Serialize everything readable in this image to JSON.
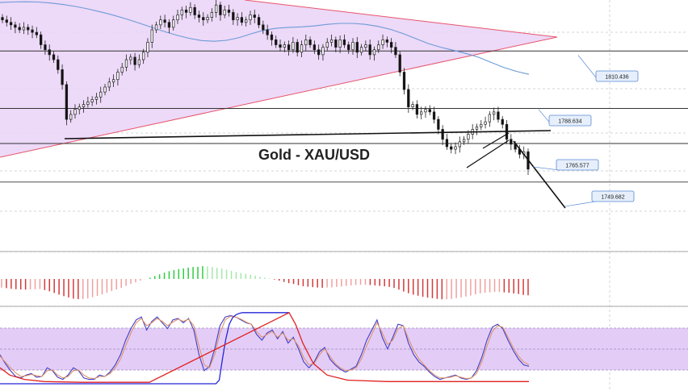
{
  "chart_data": [
    {
      "type": "candlestick",
      "title": "Gold - XAU/USD",
      "ylim": [
        1738,
        1832
      ],
      "levels": [
        {
          "label": "1810.436",
          "value": 1810.436
        },
        {
          "label": "1788.634",
          "value": 1788.634
        },
        {
          "label": "1765.577",
          "value": 1765.577
        },
        {
          "label": "1749.682",
          "value": 1749.682
        }
      ],
      "horizontal_lines": [
        1811.5,
        1788.4,
        1774.3,
        1758.8
      ],
      "close": [
        1824,
        1823,
        1822,
        1821,
        1820,
        1821,
        1820,
        1819,
        1818,
        1814,
        1812,
        1810,
        1808,
        1804,
        1798,
        1784,
        1786,
        1788,
        1789,
        1790,
        1791,
        1792,
        1793,
        1795,
        1797,
        1799,
        1800,
        1803,
        1805,
        1808,
        1809,
        1806,
        1808,
        1811,
        1815,
        1820,
        1822,
        1824,
        1823,
        1821,
        1824,
        1826,
        1828,
        1827,
        1829,
        1826,
        1825,
        1824,
        1825,
        1827,
        1830,
        1826,
        1828,
        1827,
        1824,
        1825,
        1823,
        1824,
        1826,
        1825,
        1822,
        1820,
        1818,
        1816,
        1814,
        1813,
        1814,
        1812,
        1815,
        1811,
        1814,
        1816,
        1814,
        1812,
        1810,
        1813,
        1815,
        1816,
        1813,
        1816,
        1814,
        1812,
        1815,
        1811,
        1813,
        1814,
        1810,
        1812,
        1814,
        1816,
        1815,
        1813,
        1810,
        1803,
        1796,
        1789,
        1790,
        1786,
        1787,
        1788,
        1787,
        1784,
        1780,
        1776,
        1773,
        1772,
        1773,
        1775,
        1776,
        1778,
        1780,
        1781,
        1782,
        1783,
        1786,
        1787,
        1784,
        1782,
        1776,
        1774,
        1772,
        1770,
        1771,
        1764
      ],
      "ma_line": [
        1831,
        1831.2,
        1831.3,
        1831.2,
        1830.8,
        1830.2,
        1829.4,
        1828.4,
        1827.2,
        1825.9,
        1824.4,
        1822.8,
        1821.1,
        1819.4,
        1817.9,
        1816.6,
        1815.7,
        1815.4,
        1815.8,
        1816.9,
        1818.5,
        1819.9,
        1820.7,
        1821,
        1821.2,
        1821.6,
        1822.2,
        1822.6,
        1822.6,
        1822.2,
        1821.4,
        1820.2,
        1818.5,
        1816.5,
        1814.5,
        1813,
        1811.8,
        1810.5,
        1809,
        1806.9,
        1804.9,
        1803.3,
        1802.1
      ],
      "ranges": {
        "x": [
          0,
          123
        ],
        "ma_x": [
          0,
          42
        ]
      }
    },
    {
      "type": "bar",
      "name": "histogram",
      "values": [
        -0.41,
        -0.44,
        -0.47,
        -0.49,
        -0.5,
        -0.51,
        -0.5,
        -0.49,
        -0.48,
        -0.53,
        -0.59,
        -0.67,
        -0.75,
        -0.82,
        -0.88,
        -0.94,
        -0.96,
        -0.96,
        -0.93,
        -0.87,
        -0.81,
        -0.74,
        -0.66,
        -0.58,
        -0.5,
        -0.42,
        -0.33,
        -0.24,
        -0.16,
        -0.08,
        -0.01,
        0.06,
        0.14,
        0.22,
        0.3,
        0.37,
        0.42,
        0.47,
        0.5,
        0.54,
        0.57,
        0.58,
        0.61,
        0.59,
        0.57,
        0.53,
        0.5,
        0.44,
        0.38,
        0.33,
        0.28,
        0.24,
        0.2,
        0.15,
        0.1,
        0.06,
        0.02,
        -0.03,
        -0.08,
        -0.14,
        -0.2,
        -0.24,
        -0.3,
        -0.35,
        -0.37,
        -0.39,
        -0.41,
        -0.42,
        -0.41,
        -0.4,
        -0.38,
        -0.36,
        -0.33,
        -0.31,
        -0.29,
        -0.28,
        -0.28,
        -0.29,
        -0.31,
        -0.33,
        -0.35,
        -0.38,
        -0.43,
        -0.51,
        -0.6,
        -0.68,
        -0.75,
        -0.8,
        -0.85,
        -0.89,
        -0.92,
        -0.95,
        -0.97,
        -0.97,
        -0.95,
        -0.91,
        -0.88,
        -0.84,
        -0.79,
        -0.73,
        -0.69,
        -0.66,
        -0.64,
        -0.62,
        -0.62,
        -0.64,
        -0.66,
        -0.69,
        -0.72,
        -0.76,
        -0.78
      ],
      "ylim": [
        -1,
        1
      ]
    },
    {
      "type": "line",
      "name": "stochastic",
      "ylim": [
        0,
        100
      ],
      "band": [
        20,
        80
      ],
      "series": [
        {
          "color": "#3f3fc8",
          "values": [
            40,
            28,
            18,
            10,
            8,
            12,
            14,
            9,
            10,
            22,
            18,
            9,
            6,
            12,
            22,
            18,
            8,
            6,
            6,
            12,
            10,
            16,
            26,
            40,
            60,
            76,
            88,
            92,
            74,
            86,
            92,
            84,
            76,
            88,
            90,
            84,
            90,
            74,
            40,
            18,
            24,
            48,
            80,
            92,
            94,
            92,
            88,
            84,
            82,
            68,
            60,
            70,
            74,
            62,
            72,
            56,
            64,
            48,
            30,
            22,
            30,
            44,
            50,
            34,
            26,
            20,
            16,
            20,
            24,
            40,
            60,
            74,
            88,
            64,
            48,
            64,
            82,
            80,
            56,
            40,
            30,
            24,
            16,
            10,
            6,
            8,
            10,
            12,
            8,
            6,
            8,
            18,
            36,
            60,
            78,
            82,
            76,
            60,
            46,
            34,
            26,
            24
          ]
        },
        {
          "color": "#e0936a",
          "values": [
            38,
            30,
            22,
            15,
            10,
            11,
            13,
            11,
            10,
            18,
            19,
            12,
            8,
            10,
            18,
            19,
            12,
            8,
            7,
            10,
            10,
            14,
            22,
            34,
            52,
            70,
            84,
            90,
            80,
            84,
            90,
            86,
            80,
            85,
            89,
            86,
            89,
            80,
            52,
            26,
            22,
            40,
            70,
            88,
            93,
            92,
            89,
            85,
            82,
            72,
            64,
            68,
            72,
            64,
            70,
            60,
            62,
            52,
            36,
            26,
            28,
            40,
            48,
            38,
            28,
            22,
            18,
            19,
            22,
            34,
            52,
            68,
            84,
            70,
            54,
            60,
            76,
            80,
            62,
            46,
            34,
            26,
            18,
            12,
            8,
            8,
            9,
            11,
            9,
            7,
            8,
            14,
            30,
            52,
            72,
            80,
            78,
            64,
            50,
            38,
            30,
            26
          ]
        },
        {
          "color": "#2525d8",
          "values": [
            0,
            0,
            0,
            0,
            0,
            0,
            0,
            0,
            0,
            0,
            0,
            0,
            0,
            0,
            0,
            0,
            0,
            0,
            0,
            0,
            0,
            5,
            35,
            62,
            82,
            91,
            95,
            97,
            98,
            98,
            98,
            98,
            98,
            98,
            98,
            98,
            98,
            98,
            98,
            98,
            98,
            98,
            98
          ]
        },
        {
          "color": "#e02020",
          "values": [
            28,
            16,
            10,
            6,
            4,
            3,
            2,
            2,
            2,
            2,
            2,
            2,
            2,
            2,
            2,
            2,
            2,
            2,
            2,
            2,
            2,
            2,
            2,
            2,
            2,
            2,
            2,
            2,
            2,
            2,
            2,
            2,
            2,
            2,
            2,
            2,
            2,
            2,
            2,
            2,
            2,
            2,
            2,
            2,
            2,
            2,
            2,
            2,
            2,
            2,
            2
          ]
        }
      ]
    }
  ]
}
